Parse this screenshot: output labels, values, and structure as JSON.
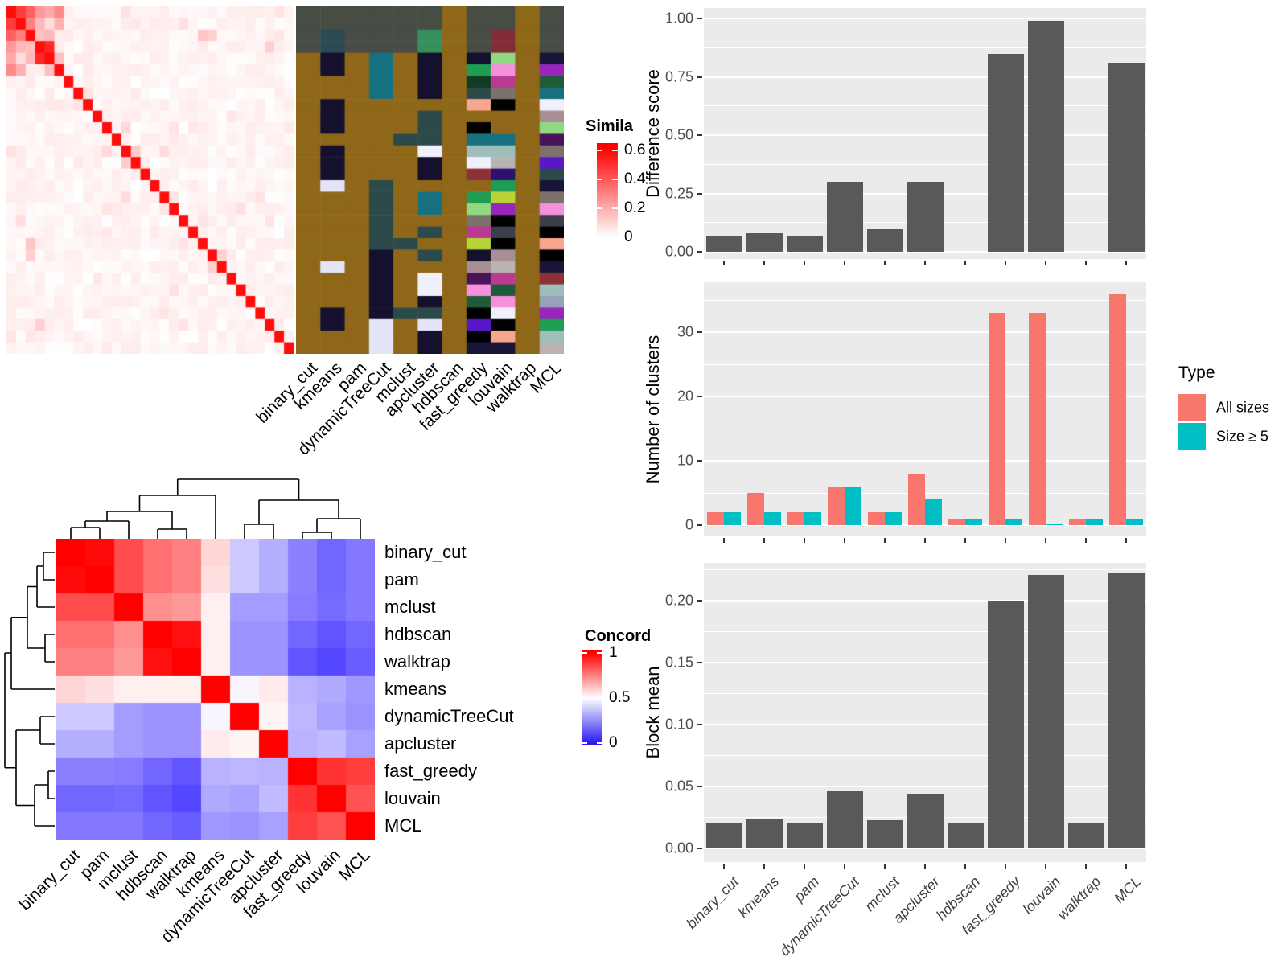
{
  "methods": [
    "binary_cut",
    "kmeans",
    "pam",
    "dynamicTreeCut",
    "mclust",
    "apcluster",
    "hdbscan",
    "fast_greedy",
    "louvain",
    "walktrap",
    "MCL"
  ],
  "chart_data": [
    {
      "type": "heatmap",
      "name": "similarity-matrix",
      "rows": 30,
      "cols": 30,
      "legend_title": "Simila",
      "legend_ticks": [
        "0.6",
        "0.4",
        "0.2",
        "0"
      ],
      "legend_tick_values": [
        0.6,
        0.4,
        0.2,
        0
      ],
      "scale_max": 0.65,
      "diagonal_value": 0.62,
      "noise_max": 0.05,
      "seed": 7,
      "hot_cells": [
        [
          0,
          1,
          0.5
        ],
        [
          0,
          2,
          0.4
        ],
        [
          1,
          2,
          0.32
        ],
        [
          0,
          3,
          0.26
        ],
        [
          1,
          3,
          0.18
        ],
        [
          2,
          3,
          0.16
        ],
        [
          3,
          4,
          0.55
        ],
        [
          2,
          4,
          0.18
        ],
        [
          0,
          4,
          0.22
        ],
        [
          0,
          5,
          0.3
        ],
        [
          1,
          5,
          0.2
        ],
        [
          4,
          5,
          0.16
        ],
        [
          2,
          20,
          0.15
        ],
        [
          2,
          21,
          0.12
        ],
        [
          12,
          13,
          0.13
        ],
        [
          21,
          22,
          0.12
        ],
        [
          3,
          27,
          0.12
        ],
        [
          10,
          12,
          0.1
        ]
      ],
      "color_low": "#FFFFFF",
      "color_high": "#FF0000"
    },
    {
      "type": "heatmap",
      "name": "cluster-assignment-annotation",
      "rows": 30,
      "cols": 11,
      "columns_follow": "methods",
      "palette": {
        "B": "#8E6718",
        "G": "#474D45",
        "K": "#2B4A53",
        "A": "#35905C",
        "R": "#822D36",
        "N": "#14102E",
        "T": "#16707F",
        "S": "#2D4A4B",
        "L": "#E4E4F8",
        "W": "#F0F0FC",
        "b": "#000000",
        "g": "#7C716C",
        "s": "#B9B3B2",
        "c": "#9EBEBB",
        "p": "#F590DC",
        "m": "#BA3A92",
        "e": "#8E3038",
        "o": "#F9A68F",
        "v": "#5A17C9",
        "u": "#9826BC",
        "d": "#491259",
        "i": "#2D1070",
        "n": "#191539",
        "f": "#1E5C38",
        "h": "#1F9D52",
        "l": "#8FD980",
        "y": "#B8D437",
        "a": "#96A3B7",
        "q": "#A88F95",
        "j": "#123B24",
        "x": "#3A3F4A"
      },
      "cells": [
        "GGGGGGBGGBG",
        "GGGGGGBGGBG",
        "GKGGGABGRBG",
        "GKGGGABGRBG",
        "BNBTBNBNlBn",
        "BNBTBNBhpBu",
        "BBBTBNBjmBf",
        "BBBTBNBSgBT",
        "BNBBBBBobBW",
        "BNBBBSBBBBq",
        "BNBBBSBbBBl",
        "BBBBSSBTTBd",
        "BNBBBWBccBg",
        "BNBBBNBWsBv",
        "BNBBBNBeiBS",
        "BLBSBBBBhBn",
        "BBBSBTBhyBg",
        "BBBSBTBluBp",
        "BBBSBBBgbBx",
        "BBBSBSBmxBb",
        "BBBSSBBybBo",
        "BBBNBSBNqBb",
        "BLBNBBBqsBn",
        "BBBNBWBdmBe",
        "BBBNBWBpfBc",
        "BBBNBNBfpBa",
        "BNBNSSBbWBu",
        "BNBLBLBvbBh",
        "BBBLBNBboBc",
        "BBBLBNBnnBs"
      ]
    },
    {
      "type": "heatmap",
      "name": "concordance-matrix",
      "legend_title": "Concord",
      "legend_ticks": [
        "1",
        "0.5",
        "0"
      ],
      "legend_tick_values": [
        1,
        0.5,
        0
      ],
      "row_order": [
        "binary_cut",
        "pam",
        "mclust",
        "hdbscan",
        "walktrap",
        "kmeans",
        "dynamicTreeCut",
        "apcluster",
        "fast_greedy",
        "louvain",
        "MCL"
      ],
      "color_scale": {
        "low": "#3020FF",
        "mid": "#FFFFFF",
        "high": "#FF0000",
        "domain": [
          0,
          0.5,
          1
        ]
      },
      "matrix": [
        [
          1.0,
          0.98,
          0.85,
          0.78,
          0.75,
          0.58,
          0.38,
          0.32,
          0.22,
          0.16,
          0.2
        ],
        [
          0.98,
          1.0,
          0.85,
          0.78,
          0.75,
          0.56,
          0.38,
          0.32,
          0.22,
          0.16,
          0.2
        ],
        [
          0.85,
          0.85,
          1.0,
          0.72,
          0.7,
          0.53,
          0.28,
          0.28,
          0.21,
          0.17,
          0.2
        ],
        [
          0.78,
          0.78,
          0.72,
          1.0,
          0.97,
          0.53,
          0.26,
          0.26,
          0.16,
          0.12,
          0.16
        ],
        [
          0.75,
          0.75,
          0.7,
          0.97,
          1.0,
          0.53,
          0.26,
          0.26,
          0.12,
          0.09,
          0.14
        ],
        [
          0.58,
          0.56,
          0.53,
          0.53,
          0.53,
          1.0,
          0.48,
          0.54,
          0.33,
          0.31,
          0.27
        ],
        [
          0.38,
          0.38,
          0.28,
          0.26,
          0.26,
          0.48,
          1.0,
          0.52,
          0.34,
          0.29,
          0.26
        ],
        [
          0.32,
          0.32,
          0.28,
          0.26,
          0.26,
          0.54,
          0.52,
          1.0,
          0.33,
          0.35,
          0.29
        ],
        [
          0.22,
          0.22,
          0.21,
          0.16,
          0.12,
          0.33,
          0.34,
          0.33,
          1.0,
          0.9,
          0.88
        ],
        [
          0.16,
          0.16,
          0.17,
          0.12,
          0.09,
          0.31,
          0.29,
          0.35,
          0.9,
          1.0,
          0.84
        ],
        [
          0.2,
          0.2,
          0.2,
          0.16,
          0.14,
          0.27,
          0.26,
          0.29,
          0.88,
          0.84,
          1.0
        ]
      ]
    },
    {
      "type": "bar",
      "name": "difference-score",
      "ylabel": "Difference score",
      "values": [
        0.065,
        0.08,
        0.065,
        0.3,
        0.095,
        0.3,
        0,
        0.85,
        0.99,
        0,
        0.81
      ],
      "ytick_labels": [
        "0.00",
        "0.25",
        "0.50",
        "0.75",
        "1.00"
      ],
      "ytick_values": [
        0,
        0.25,
        0.5,
        0.75,
        1.0
      ],
      "ylim": [
        0,
        1.04
      ],
      "bar_color": "#595959",
      "panel_bg": "#EBEBEB",
      "grid_color": "#FFFFFF"
    },
    {
      "type": "bar",
      "name": "number-of-clusters",
      "ylabel": "Number of clusters",
      "legend_title": "Type",
      "series": [
        {
          "name": "All sizes",
          "color": "#F8766D",
          "values": [
            2,
            5,
            2,
            6,
            2,
            8,
            1,
            33,
            33,
            1,
            36
          ]
        },
        {
          "name": "Size ≥ 5",
          "color": "#00BFC4",
          "values": [
            2,
            2,
            2,
            6,
            2,
            4,
            1,
            1,
            0.3,
            1,
            1
          ]
        }
      ],
      "ytick_labels": [
        "0",
        "10",
        "20",
        "30"
      ],
      "ytick_values": [
        0,
        10,
        20,
        30
      ],
      "ylim": [
        0,
        37.8
      ],
      "panel_bg": "#EBEBEB",
      "grid_color": "#FFFFFF"
    },
    {
      "type": "bar",
      "name": "block-mean",
      "ylabel": "Block mean",
      "values": [
        0.021,
        0.024,
        0.021,
        0.046,
        0.023,
        0.044,
        0.021,
        0.2,
        0.221,
        0.021,
        0.223
      ],
      "ytick_labels": [
        "0.00",
        "0.05",
        "0.10",
        "0.15",
        "0.20"
      ],
      "ytick_values": [
        0,
        0.05,
        0.1,
        0.15,
        0.2
      ],
      "ylim": [
        0,
        0.233
      ],
      "bar_color": "#595959",
      "panel_bg": "#EBEBEB",
      "grid_color": "#FFFFFF",
      "x_tick_labels_visible": true
    }
  ]
}
